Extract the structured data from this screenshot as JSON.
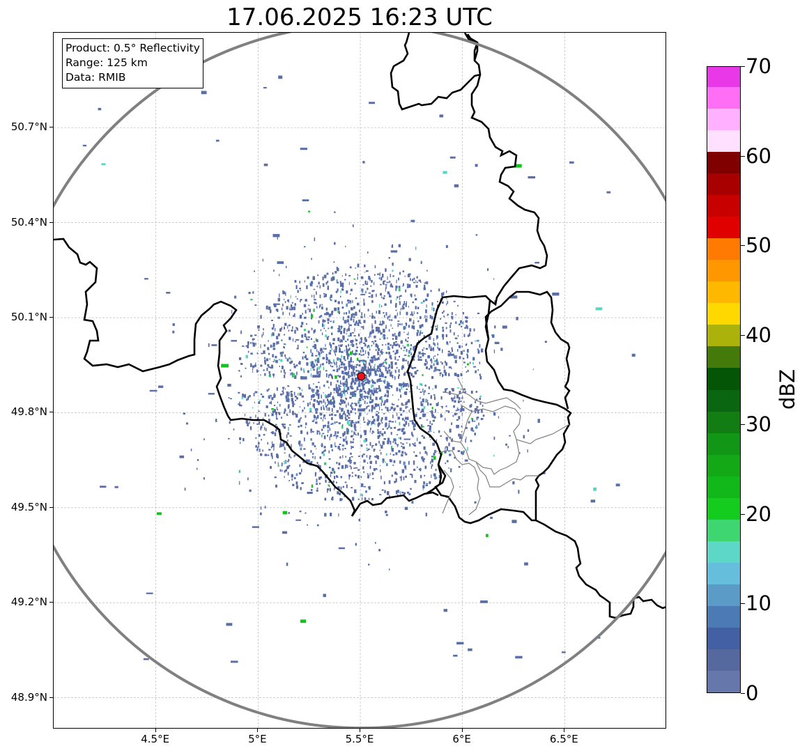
{
  "title": "17.06.2025 16:23 UTC",
  "info_box": {
    "product": "Product: 0.5° Reflectivity",
    "range": "Range: 125 km",
    "source": "Data: RMIB"
  },
  "map": {
    "lon_range": [
      4.0,
      7.0
    ],
    "lat_range": [
      48.8,
      51.0
    ],
    "radar_site": {
      "lon": 5.505,
      "lat": 49.915,
      "color": "#e8141c"
    },
    "range_ring_km": 125,
    "range_ring_color": "#808080",
    "border_color": "#000000",
    "admin_border_color": "#808080",
    "echo_colors": [
      "#5a6ea8",
      "#4a6cb0",
      "#5c90c0",
      "#3cc870",
      "#12c41a",
      "#58d6c4"
    ]
  },
  "axes": {
    "y_ticks": [
      {
        "value": 48.9,
        "label": "48.9°N"
      },
      {
        "value": 49.2,
        "label": "49.2°N"
      },
      {
        "value": 49.5,
        "label": "49.5°N"
      },
      {
        "value": 49.8,
        "label": "49.8°N"
      },
      {
        "value": 50.1,
        "label": "50.1°N"
      },
      {
        "value": 50.4,
        "label": "50.4°N"
      },
      {
        "value": 50.7,
        "label": "50.7°N"
      }
    ],
    "x_ticks": [
      {
        "value": 4.5,
        "label": "4.5°E"
      },
      {
        "value": 5.0,
        "label": "5°E"
      },
      {
        "value": 5.5,
        "label": "5.5°E"
      },
      {
        "value": 6.0,
        "label": "6°E"
      },
      {
        "value": 6.5,
        "label": "6.5°E"
      }
    ]
  },
  "colorbar": {
    "label": "dBZ",
    "min": 0,
    "max": 70,
    "tick_labels": [
      "0",
      "10",
      "20",
      "30",
      "40",
      "50",
      "60",
      "70"
    ],
    "bands": [
      "#6577ab",
      "#55699f",
      "#4360a4",
      "#4b7ab5",
      "#5a9bc8",
      "#65bedc",
      "#5dd8c6",
      "#3dd670",
      "#14cc1e",
      "#12b819",
      "#12a816",
      "#129615",
      "#117d13",
      "#0a6611",
      "#045506",
      "#437a0a",
      "#abb20a",
      "#ffd800",
      "#ffb800",
      "#ff9800",
      "#ff7a00",
      "#e00000",
      "#c80000",
      "#a80000",
      "#800000",
      "#ffe0ff",
      "#ffb0ff",
      "#ff6ef5",
      "#e838e8"
    ]
  }
}
